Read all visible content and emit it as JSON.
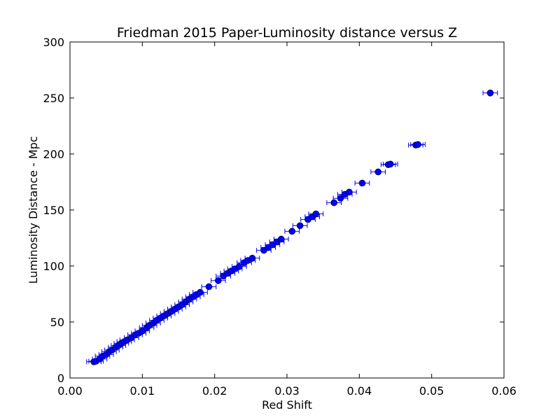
{
  "chart_data": {
    "type": "scatter",
    "title": "Friedman 2015 Paper-Luminosity distance versus Z",
    "xlabel": "Red Shift",
    "ylabel": "Luminosity Distance - Mpc",
    "xlim": [
      0.0,
      0.06
    ],
    "ylim": [
      0,
      300
    ],
    "xticks": [
      "0.00",
      "0.01",
      "0.02",
      "0.03",
      "0.04",
      "0.05",
      "0.06"
    ],
    "yticks": [
      "0",
      "50",
      "100",
      "150",
      "200",
      "250",
      "300"
    ],
    "grid": false,
    "marker_color": "#0000ff",
    "error_bar_color": "#0000ff",
    "x_error": 0.001,
    "points": [
      [
        0.0033,
        14.5
      ],
      [
        0.0036,
        15.0
      ],
      [
        0.0041,
        17.0
      ],
      [
        0.0045,
        19.5
      ],
      [
        0.005,
        21.0
      ],
      [
        0.0054,
        23.5
      ],
      [
        0.0058,
        25.0
      ],
      [
        0.0063,
        27.5
      ],
      [
        0.0067,
        29.0
      ],
      [
        0.0071,
        31.0
      ],
      [
        0.0075,
        32.5
      ],
      [
        0.0079,
        34.0
      ],
      [
        0.0085,
        36.0
      ],
      [
        0.009,
        38.5
      ],
      [
        0.0095,
        40.0
      ],
      [
        0.01,
        42.0
      ],
      [
        0.0106,
        45.0
      ],
      [
        0.011,
        47.0
      ],
      [
        0.0115,
        49.0
      ],
      [
        0.012,
        51.5
      ],
      [
        0.0125,
        53.5
      ],
      [
        0.013,
        55.5
      ],
      [
        0.0135,
        57.5
      ],
      [
        0.014,
        59.5
      ],
      [
        0.0145,
        61.5
      ],
      [
        0.015,
        63.5
      ],
      [
        0.0155,
        65.5
      ],
      [
        0.016,
        68.0
      ],
      [
        0.0165,
        70.5
      ],
      [
        0.017,
        72.5
      ],
      [
        0.0175,
        74.5
      ],
      [
        0.018,
        76.5
      ],
      [
        0.0192,
        81.5
      ],
      [
        0.0205,
        87.0
      ],
      [
        0.0212,
        91.0
      ],
      [
        0.0218,
        93.5
      ],
      [
        0.0223,
        95.5
      ],
      [
        0.0228,
        97.5
      ],
      [
        0.0234,
        99.5
      ],
      [
        0.0241,
        103.0
      ],
      [
        0.0246,
        105.0
      ],
      [
        0.0252,
        107.0
      ],
      [
        0.0268,
        114.0
      ],
      [
        0.0274,
        116.5
      ],
      [
        0.028,
        119.0
      ],
      [
        0.0286,
        121.5
      ],
      [
        0.0292,
        124.0
      ],
      [
        0.0307,
        131.0
      ],
      [
        0.0318,
        136.0
      ],
      [
        0.0329,
        141.5
      ],
      [
        0.0335,
        144.0
      ],
      [
        0.034,
        146.5
      ],
      [
        0.0365,
        156.5
      ],
      [
        0.0374,
        160.5
      ],
      [
        0.038,
        164.0
      ],
      [
        0.0386,
        166.0
      ],
      [
        0.0404,
        174.0
      ],
      [
        0.0426,
        184.0
      ],
      [
        0.044,
        190.5
      ],
      [
        0.0443,
        191.0
      ],
      [
        0.0478,
        208.0
      ],
      [
        0.0481,
        208.5
      ],
      [
        0.0581,
        254.5
      ]
    ]
  }
}
